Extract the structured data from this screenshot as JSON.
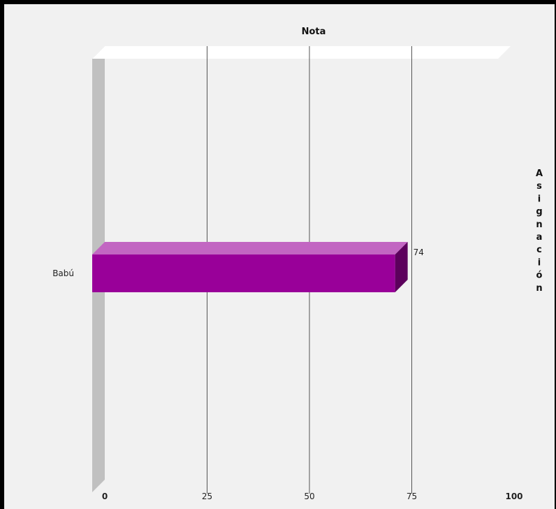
{
  "chart_data": {
    "type": "bar",
    "orientation": "horizontal",
    "three_d": true,
    "title": "Nota",
    "ylabel": "Asignación",
    "categories": [
      "Babú"
    ],
    "values": [
      74
    ],
    "data_labels": [
      "74"
    ],
    "xlim": [
      0,
      100
    ],
    "x_ticks": [
      "0",
      "25",
      "50",
      "75",
      "100"
    ],
    "grid": true,
    "colors": {
      "bar_front": "#990099",
      "bar_top": "#c266c2",
      "bar_side": "#5c005c",
      "wall": "#c0c0c0",
      "gridline": "#555555"
    }
  }
}
